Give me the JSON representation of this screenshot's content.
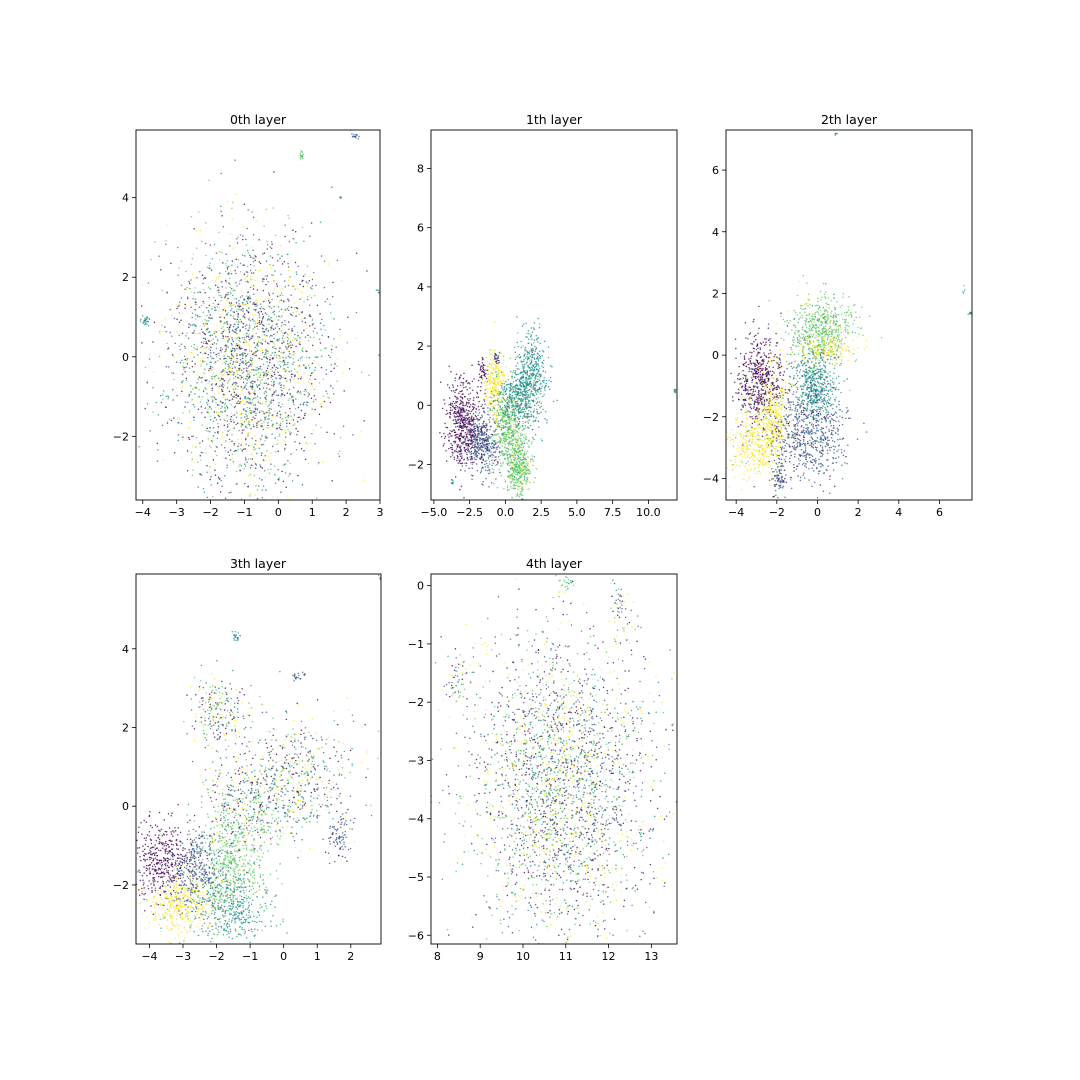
{
  "figure": {
    "layout": "2x3 grid of scatter plots (last cell empty)",
    "background": "#ffffff",
    "colormap": [
      "#440154",
      "#3b528b",
      "#21918c",
      "#5ec962",
      "#fde725"
    ]
  },
  "chart_data": [
    {
      "type": "scatter",
      "title": "0th layer",
      "xlabel": "",
      "ylabel": "",
      "xlim": [
        -4.2,
        3.0
      ],
      "ylim": [
        -3.6,
        5.7
      ],
      "xticks": [
        -4,
        -3,
        -2,
        -1,
        0,
        1,
        2,
        3
      ],
      "xtick_labels": [
        "−4",
        "−3",
        "−2",
        "−1",
        "0",
        "1",
        "2",
        "3"
      ],
      "yticks": [
        -2,
        0,
        2,
        4
      ],
      "ytick_labels": [
        "−2",
        "0",
        "2",
        "4"
      ],
      "grid": false,
      "legend": "none",
      "color_mixing": "uniform",
      "clusters": [
        {
          "x": -0.9,
          "y": -0.1,
          "sx": 1.15,
          "sy": 1.55,
          "n": 2600,
          "c": "mix"
        },
        {
          "x": -3.95,
          "y": 0.9,
          "sx": 0.08,
          "sy": 0.06,
          "n": 25,
          "c": 2
        },
        {
          "x": 0.7,
          "y": 5.05,
          "sx": 0.03,
          "sy": 0.06,
          "n": 15,
          "c": 3
        },
        {
          "x": 2.25,
          "y": 5.55,
          "sx": 0.06,
          "sy": 0.05,
          "n": 15,
          "c": 1
        },
        {
          "x": 2.95,
          "y": 1.65,
          "sx": 0.04,
          "sy": 0.04,
          "n": 8,
          "c": 2
        },
        {
          "x": 1.85,
          "y": 4.0,
          "sx": 0.02,
          "sy": 0.02,
          "n": 4,
          "c": 2
        }
      ]
    },
    {
      "type": "scatter",
      "title": "1th layer",
      "xlabel": "",
      "ylabel": "",
      "xlim": [
        -5.2,
        12.0
      ],
      "ylim": [
        -3.2,
        9.3
      ],
      "xticks": [
        -5,
        -2.5,
        0,
        2.5,
        5,
        7.5,
        10
      ],
      "xtick_labels": [
        "−5.0",
        "−2.5",
        "0.0",
        "2.5",
        "5.0",
        "7.5",
        "10.0"
      ],
      "yticks": [
        -2,
        0,
        2,
        4,
        6,
        8
      ],
      "ytick_labels": [
        "−2",
        "0",
        "2",
        "4",
        "6",
        "8"
      ],
      "grid": false,
      "legend": "none",
      "color_mixing": "clustered",
      "clusters": [
        {
          "x": -2.9,
          "y": -0.6,
          "sx": 0.6,
          "sy": 0.75,
          "n": 550,
          "c": 0
        },
        {
          "x": -1.6,
          "y": -1.3,
          "sx": 0.6,
          "sy": 0.5,
          "n": 400,
          "c": 1
        },
        {
          "x": -0.8,
          "y": 0.7,
          "sx": 0.35,
          "sy": 0.55,
          "n": 250,
          "c": 4
        },
        {
          "x": 0.2,
          "y": -0.8,
          "sx": 0.55,
          "sy": 0.7,
          "n": 450,
          "c": 3
        },
        {
          "x": 0.9,
          "y": -2.1,
          "sx": 0.45,
          "sy": 0.5,
          "n": 400,
          "c": 3
        },
        {
          "x": 1.7,
          "y": 0.9,
          "sx": 0.6,
          "sy": 0.8,
          "n": 550,
          "c": 2
        },
        {
          "x": 0.6,
          "y": 0.2,
          "sx": 0.7,
          "sy": 0.45,
          "n": 250,
          "c": 2
        },
        {
          "x": -1.6,
          "y": 1.2,
          "sx": 0.15,
          "sy": 0.2,
          "n": 40,
          "c": 0
        },
        {
          "x": -0.6,
          "y": 1.6,
          "sx": 0.1,
          "sy": 0.12,
          "n": 25,
          "c": 1
        },
        {
          "x": -3.7,
          "y": -2.6,
          "sx": 0.05,
          "sy": 0.06,
          "n": 10,
          "c": 2
        },
        {
          "x": 11.9,
          "y": 0.5,
          "sx": 0.05,
          "sy": 0.04,
          "n": 8,
          "c": 2
        }
      ]
    },
    {
      "type": "scatter",
      "title": "2th layer",
      "xlabel": "",
      "ylabel": "",
      "xlim": [
        -4.5,
        7.6
      ],
      "ylim": [
        -4.7,
        7.3
      ],
      "xticks": [
        -4,
        -2,
        0,
        2,
        4,
        6
      ],
      "xtick_labels": [
        "−4",
        "−2",
        "0",
        "2",
        "4",
        "6"
      ],
      "yticks": [
        -4,
        -2,
        0,
        2,
        4,
        6
      ],
      "ytick_labels": [
        "−4",
        "−2",
        "0",
        "2",
        "4",
        "6"
      ],
      "grid": false,
      "legend": "none",
      "color_mixing": "clustered",
      "clusters": [
        {
          "x": -2.8,
          "y": -0.8,
          "sx": 0.55,
          "sy": 0.75,
          "n": 550,
          "c": 0
        },
        {
          "x": -2.3,
          "y": -2.1,
          "sx": 0.5,
          "sy": 0.85,
          "n": 450,
          "c": 4
        },
        {
          "x": -3.3,
          "y": -3.0,
          "sx": 0.6,
          "sy": 0.5,
          "n": 250,
          "c": 4
        },
        {
          "x": 0.2,
          "y": 0.9,
          "sx": 0.8,
          "sy": 0.55,
          "n": 550,
          "c": 3
        },
        {
          "x": -0.1,
          "y": -0.9,
          "sx": 0.55,
          "sy": 0.65,
          "n": 500,
          "c": 2
        },
        {
          "x": -0.4,
          "y": -2.5,
          "sx": 0.9,
          "sy": 0.8,
          "n": 650,
          "c": 1
        },
        {
          "x": -1.9,
          "y": -3.9,
          "sx": 0.2,
          "sy": 0.35,
          "n": 80,
          "c": 1
        },
        {
          "x": 0.6,
          "y": 0.2,
          "sx": 0.8,
          "sy": 0.2,
          "n": 150,
          "c": 4
        },
        {
          "x": 7.5,
          "y": 1.35,
          "sx": 0.06,
          "sy": 0.03,
          "n": 10,
          "c": 2
        },
        {
          "x": 7.2,
          "y": 2.1,
          "sx": 0.04,
          "sy": 0.04,
          "n": 5,
          "c": 3
        },
        {
          "x": 0.9,
          "y": 7.2,
          "sx": 0.05,
          "sy": 0.03,
          "n": 5,
          "c": 2
        }
      ]
    },
    {
      "type": "scatter",
      "title": "3th layer",
      "xlabel": "",
      "ylabel": "",
      "xlim": [
        -4.4,
        2.9
      ],
      "ylim": [
        -3.5,
        5.9
      ],
      "xticks": [
        -4,
        -3,
        -2,
        -1,
        0,
        1,
        2
      ],
      "xtick_labels": [
        "−4",
        "−3",
        "−2",
        "−1",
        "0",
        "1",
        "2"
      ],
      "yticks": [
        -2,
        0,
        2,
        4
      ],
      "ytick_labels": [
        "−2",
        "0",
        "2",
        "4"
      ],
      "grid": false,
      "legend": "none",
      "color_mixing": "clustered",
      "clusters": [
        {
          "x": -3.6,
          "y": -1.4,
          "sx": 0.5,
          "sy": 0.5,
          "n": 450,
          "c": 0
        },
        {
          "x": -3.1,
          "y": -2.5,
          "sx": 0.45,
          "sy": 0.35,
          "n": 350,
          "c": 4
        },
        {
          "x": -1.6,
          "y": -1.4,
          "sx": 0.55,
          "sy": 0.75,
          "n": 600,
          "c": 3
        },
        {
          "x": -1.6,
          "y": -2.6,
          "sx": 0.6,
          "sy": 0.45,
          "n": 400,
          "c": 2
        },
        {
          "x": -2.6,
          "y": -1.6,
          "sx": 0.35,
          "sy": 0.45,
          "n": 250,
          "c": 1
        },
        {
          "x": 0.2,
          "y": 0.8,
          "sx": 1.0,
          "sy": 0.8,
          "n": 600,
          "c": "mix"
        },
        {
          "x": -1.0,
          "y": 0.0,
          "sx": 0.7,
          "sy": 0.6,
          "n": 300,
          "c": "mix"
        },
        {
          "x": -2.0,
          "y": 2.4,
          "sx": 0.4,
          "sy": 0.45,
          "n": 220,
          "c": "mix"
        },
        {
          "x": 1.6,
          "y": -0.8,
          "sx": 0.2,
          "sy": 0.35,
          "n": 80,
          "c": 1
        },
        {
          "x": -1.4,
          "y": 4.3,
          "sx": 0.06,
          "sy": 0.1,
          "n": 20,
          "c": 2
        },
        {
          "x": 0.4,
          "y": 3.3,
          "sx": 0.15,
          "sy": 0.05,
          "n": 20,
          "c": 1
        },
        {
          "x": 2.85,
          "y": 5.8,
          "sx": 0.03,
          "sy": 0.03,
          "n": 5,
          "c": 2
        }
      ]
    },
    {
      "type": "scatter",
      "title": "4th layer",
      "xlabel": "",
      "ylabel": "",
      "xlim": [
        7.85,
        13.6
      ],
      "ylim": [
        -6.15,
        0.2
      ],
      "xticks": [
        8,
        9,
        10,
        11,
        12,
        13
      ],
      "xtick_labels": [
        "8",
        "9",
        "10",
        "11",
        "12",
        "13"
      ],
      "yticks": [
        -6,
        -5,
        -4,
        -3,
        -2,
        -1,
        0
      ],
      "ytick_labels": [
        "−6",
        "−5",
        "−4",
        "−3",
        "−2",
        "−1",
        "0"
      ],
      "grid": false,
      "legend": "none",
      "color_mixing": "uniform",
      "clusters": [
        {
          "x": 10.9,
          "y": -3.4,
          "sx": 1.05,
          "sy": 1.3,
          "n": 2800,
          "c": "mix"
        },
        {
          "x": 8.4,
          "y": -1.6,
          "sx": 0.2,
          "sy": 0.25,
          "n": 60,
          "c": "mix"
        },
        {
          "x": 12.3,
          "y": -0.4,
          "sx": 0.15,
          "sy": 0.2,
          "n": 50,
          "c": "mix"
        },
        {
          "x": 11.0,
          "y": 0.05,
          "sx": 0.1,
          "sy": 0.08,
          "n": 25,
          "c": 3
        }
      ]
    }
  ]
}
